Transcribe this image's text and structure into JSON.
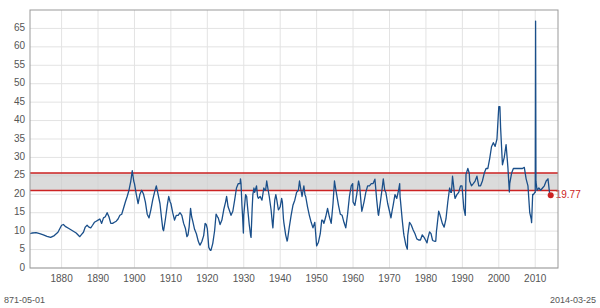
{
  "chart_data": {
    "type": "line",
    "x": [
      1871.33,
      1872.0,
      1873.0,
      1874.0,
      1875.0,
      1876.0,
      1877.0,
      1878.0,
      1879.0,
      1880.0,
      1880.5,
      1881.0,
      1882.0,
      1883.0,
      1884.0,
      1885.0,
      1885.5,
      1886.0,
      1886.5,
      1887.0,
      1887.5,
      1888.0,
      1888.5,
      1889.0,
      1889.5,
      1890.0,
      1890.5,
      1891.0,
      1891.5,
      1892.0,
      1892.5,
      1893.0,
      1893.5,
      1894.0,
      1894.5,
      1895.0,
      1895.5,
      1896.0,
      1896.5,
      1897.0,
      1897.5,
      1898.0,
      1898.5,
      1899.0,
      1899.4,
      1899.5,
      1899.8,
      1900.0,
      1900.5,
      1901.0,
      1901.5,
      1902.0,
      1902.5,
      1903.0,
      1903.5,
      1904.0,
      1904.5,
      1905.0,
      1905.5,
      1906.0,
      1906.5,
      1907.0,
      1907.5,
      1907.8,
      1908.0,
      1908.5,
      1909.0,
      1909.4,
      1909.8,
      1910.0,
      1910.5,
      1911.0,
      1911.5,
      1912.0,
      1912.5,
      1913.0,
      1913.5,
      1914.0,
      1914.4,
      1914.7,
      1915.0,
      1915.4,
      1915.7,
      1916.0,
      1916.5,
      1917.0,
      1917.5,
      1917.9,
      1918.0,
      1918.5,
      1919.0,
      1919.4,
      1919.7,
      1920.0,
      1920.4,
      1920.8,
      1921.0,
      1921.5,
      1922.0,
      1922.4,
      1922.8,
      1923.0,
      1923.5,
      1924.0,
      1924.5,
      1925.0,
      1925.3,
      1925.7,
      1926.0,
      1926.5,
      1927.0,
      1927.5,
      1928.0,
      1928.5,
      1929.0,
      1929.1,
      1929.25,
      1929.5,
      1929.7,
      1929.9,
      1930.0,
      1930.5,
      1930.8,
      1931.0,
      1931.5,
      1931.9,
      1932.0,
      1932.3,
      1932.5,
      1932.8,
      1933.0,
      1933.5,
      1933.8,
      1934.0,
      1934.5,
      1935.0,
      1935.5,
      1935.8,
      1936.0,
      1936.3,
      1936.7,
      1937.0,
      1937.5,
      1937.9,
      1938.0,
      1938.5,
      1938.8,
      1939.0,
      1939.5,
      1939.8,
      1940.0,
      1940.4,
      1940.6,
      1940.9,
      1941.0,
      1941.5,
      1941.9,
      1942.0,
      1942.5,
      1943.0,
      1943.5,
      1944.0,
      1944.5,
      1945.0,
      1945.3,
      1945.7,
      1946.0,
      1946.5,
      1946.8,
      1947.0,
      1947.5,
      1948.0,
      1948.5,
      1949.0,
      1949.5,
      1950.0,
      1950.5,
      1951.0,
      1951.4,
      1951.7,
      1952.0,
      1952.5,
      1953.0,
      1953.5,
      1954.0,
      1954.5,
      1954.9,
      1955.0,
      1955.5,
      1956.0,
      1956.5,
      1957.0,
      1957.5,
      1958.0,
      1958.5,
      1959.0,
      1959.5,
      1959.9,
      1960.0,
      1960.5,
      1961.0,
      1961.5,
      1961.8,
      1962.0,
      1962.4,
      1962.7,
      1963.0,
      1963.5,
      1964.0,
      1964.5,
      1965.0,
      1965.5,
      1966.0,
      1966.5,
      1966.9,
      1967.0,
      1967.5,
      1968.0,
      1968.3,
      1968.7,
      1969.0,
      1969.5,
      1970.0,
      1970.4,
      1970.7,
      1971.0,
      1971.5,
      1972.0,
      1972.5,
      1972.8,
      1972.9,
      1973.0,
      1973.5,
      1973.9,
      1974.0,
      1974.5,
      1974.9,
      1975.0,
      1975.5,
      1975.9,
      1976.0,
      1976.5,
      1977.0,
      1977.5,
      1978.0,
      1978.5,
      1979.0,
      1979.5,
      1980.0,
      1980.3,
      1980.5,
      1981.0,
      1981.4,
      1981.8,
      1982.0,
      1982.5,
      1982.7,
      1982.9,
      1983.0,
      1983.5,
      1983.8,
      1984.0,
      1984.5,
      1985.0,
      1985.5,
      1986.0,
      1986.5,
      1986.8,
      1987.0,
      1987.3,
      1987.6,
      1987.9,
      1988.0,
      1988.5,
      1989.0,
      1989.5,
      1989.9,
      1990.0,
      1990.4,
      1990.8,
      1991.0,
      1991.5,
      1991.9,
      1992.0,
      1992.5,
      1993.0,
      1993.5,
      1994.0,
      1994.5,
      1995.0,
      1995.5,
      1996.0,
      1996.5,
      1997.0,
      1997.5,
      1998.0,
      1998.5,
      1999.0,
      1999.5,
      2000.0,
      2000.3,
      2000.5,
      2001.0,
      2001.5,
      2002.0,
      2002.5,
      2002.9,
      2003.0,
      2003.5,
      2004.0,
      2004.5,
      2005.0,
      2005.5,
      2006.0,
      2006.5,
      2007.0,
      2007.5,
      2008.0,
      2008.5,
      2008.9,
      2009.0,
      2009.3,
      2009.5,
      2009.9,
      2010.0,
      2010.1,
      2010.2,
      2010.5,
      2011.0,
      2011.5,
      2012.0,
      2012.5,
      2013.0,
      2013.5,
      2014.0,
      2014.25
    ],
    "series": [
      {
        "color": "#1a4f8a",
        "values": [
          9.3,
          9.5,
          9.6,
          9.3,
          9.0,
          8.6,
          8.3,
          8.8,
          9.7,
          11.6,
          11.8,
          11.3,
          10.7,
          10.1,
          9.5,
          8.5,
          9.1,
          9.7,
          11.1,
          11.6,
          11.1,
          10.9,
          11.6,
          12.4,
          12.7,
          13.0,
          13.3,
          12.1,
          13.6,
          13.9,
          15.0,
          13.9,
          12.1,
          12.1,
          12.4,
          12.7,
          13.3,
          14.3,
          14.6,
          16.2,
          17.9,
          19.4,
          21.1,
          23.6,
          26.4,
          25.7,
          23.6,
          22.9,
          20.0,
          17.5,
          20.0,
          21.1,
          20.0,
          17.9,
          14.6,
          13.6,
          15.8,
          18.4,
          20.5,
          22.3,
          19.9,
          17.5,
          13.0,
          10.5,
          10.1,
          13.3,
          17.0,
          19.4,
          17.9,
          17.5,
          15.0,
          13.0,
          14.3,
          14.3,
          15.0,
          14.3,
          12.1,
          10.7,
          8.5,
          9.0,
          11.1,
          16.2,
          13.9,
          12.7,
          10.5,
          9.3,
          7.3,
          6.3,
          6.2,
          7.2,
          8.8,
          12.1,
          11.8,
          10.7,
          5.6,
          4.8,
          4.8,
          6.7,
          10.1,
          14.6,
          13.9,
          13.6,
          11.8,
          13.0,
          15.8,
          17.9,
          19.4,
          16.6,
          15.8,
          14.3,
          15.4,
          18.4,
          21.7,
          22.9,
          22.9,
          24.2,
          22.9,
          17.0,
          13.6,
          9.5,
          14.3,
          19.9,
          19.4,
          17.0,
          11.8,
          8.7,
          8.3,
          16.0,
          20.0,
          21.7,
          20.5,
          22.3,
          19.4,
          18.9,
          19.4,
          18.4,
          21.7,
          21.1,
          21.1,
          23.6,
          21.1,
          19.4,
          15.8,
          11.6,
          10.9,
          18.4,
          19.9,
          18.9,
          15.8,
          16.2,
          16.6,
          18.9,
          17.9,
          13.3,
          12.4,
          9.0,
          7.3,
          7.6,
          11.1,
          14.3,
          17.0,
          18.4,
          20.5,
          21.1,
          23.6,
          21.1,
          19.4,
          22.3,
          19.9,
          19.4,
          16.6,
          14.3,
          12.4,
          10.9,
          12.4,
          6.0,
          7.0,
          9.3,
          13.0,
          12.9,
          12.1,
          13.9,
          16.2,
          13.9,
          12.1,
          17.5,
          23.6,
          22.9,
          19.9,
          17.0,
          14.6,
          14.3,
          12.4,
          10.9,
          14.6,
          19.4,
          22.3,
          22.9,
          17.9,
          17.0,
          19.9,
          23.6,
          22.3,
          19.9,
          15.4,
          16.6,
          17.9,
          20.5,
          22.3,
          22.3,
          22.9,
          22.9,
          24.1,
          18.4,
          14.6,
          14.3,
          17.9,
          21.7,
          24.2,
          21.1,
          20.5,
          17.5,
          15.4,
          13.6,
          15.4,
          17.0,
          19.9,
          18.9,
          21.1,
          22.9,
          19.4,
          18.4,
          13.0,
          9.3,
          8.7,
          6.2,
          5.1,
          8.8,
          12.4,
          11.8,
          11.6,
          10.3,
          9.3,
          7.9,
          7.6,
          7.6,
          9.0,
          8.3,
          7.4,
          6.8,
          7.9,
          9.8,
          9.3,
          7.6,
          7.4,
          7.2,
          7.3,
          10.1,
          10.9,
          15.4,
          14.6,
          13.9,
          12.1,
          11.1,
          13.3,
          17.9,
          21.7,
          20.5,
          20.5,
          24.9,
          22.3,
          19.4,
          18.9,
          19.9,
          20.5,
          22.3,
          22.3,
          21.1,
          16.2,
          14.3,
          25.4,
          27.0,
          25.7,
          23.6,
          22.3,
          22.9,
          23.6,
          24.9,
          22.3,
          22.3,
          23.6,
          25.7,
          27.0,
          27.0,
          29.7,
          32.9,
          34.0,
          33.0,
          35.0,
          43.8,
          43.8,
          38.0,
          28.0,
          30.0,
          33.5,
          27.3,
          20.6,
          22.9,
          25.7,
          27.0,
          27.0,
          27.0,
          27.0,
          27.0,
          27.0,
          27.3,
          24.2,
          22.3,
          15.0,
          13.3,
          12.3,
          20.0,
          19.9,
          20.5,
          20.5,
          67.0,
          23.5,
          21.1,
          21.7,
          21.1,
          21.7,
          22.3,
          23.6,
          24.2,
          19.77,
          19.77
        ]
      }
    ],
    "band": {
      "from": 21.0,
      "to": 25.8,
      "color": "#cccccc"
    },
    "ref_lines": [
      {
        "value": 21.0,
        "color": "#cc2222"
      },
      {
        "value": 25.8,
        "color": "#cc2222"
      }
    ],
    "points": [
      {
        "x": 2014.25,
        "value": 19.77,
        "color": "#cc2222",
        "data_labels": true
      }
    ],
    "annotations": [
      "871-05-01",
      "2014-03-25"
    ],
    "xlim": [
      1871.33,
      2016.25
    ],
    "ylim": [
      0,
      70
    ],
    "xticks": [
      1880,
      1890,
      1900,
      1910,
      1920,
      1930,
      1940,
      1950,
      1960,
      1970,
      1980,
      1990,
      2000,
      2010
    ],
    "yticks": [
      0,
      5,
      10,
      15,
      20,
      25,
      30,
      35,
      40,
      45,
      50,
      55,
      60,
      65
    ],
    "grid": true
  }
}
